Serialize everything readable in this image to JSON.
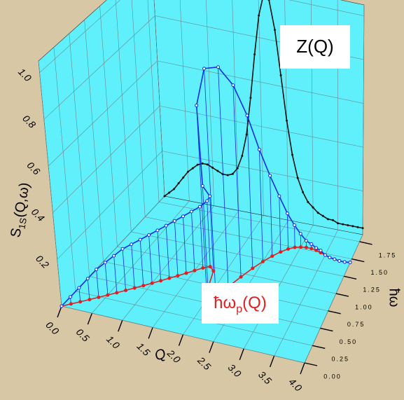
{
  "chart_data": {
    "type": "line3d",
    "x": [
      0.0,
      0.1,
      0.2,
      0.3,
      0.4,
      0.5,
      0.6,
      0.7,
      0.8,
      0.9,
      1.0,
      1.1,
      1.2,
      1.3,
      1.4,
      1.5,
      1.6,
      1.7,
      1.8,
      1.9,
      2.0,
      2.1,
      2.2,
      2.3,
      2.4,
      2.5,
      2.6,
      2.7,
      2.8,
      2.9,
      3.0,
      3.1,
      3.2,
      3.3,
      3.4,
      3.5,
      3.6,
      3.7,
      3.8,
      3.9,
      4.0
    ],
    "omega_p": {
      "color": "#e02020",
      "values": [
        0,
        0.06,
        0.12,
        0.18,
        0.24,
        0.3,
        0.36,
        0.42,
        0.48,
        0.54,
        0.6,
        0.66,
        0.72,
        0.78,
        0.84,
        0.9,
        0.96,
        1.0,
        0.95,
        0.7,
        0.55,
        0.62,
        0.78,
        0.95,
        1.1,
        1.22,
        1.32,
        1.4,
        1.46,
        1.5,
        1.52,
        1.53,
        1.53,
        1.52,
        1.5,
        1.48,
        1.46,
        1.45,
        1.44,
        1.44,
        1.45
      ]
    },
    "S": {
      "color": "#1030e0",
      "values": [
        0,
        0.03,
        0.06,
        0.09,
        0.12,
        0.14,
        0.16,
        0.18,
        0.19,
        0.2,
        0.21,
        0.22,
        0.23,
        0.24,
        0.25,
        0.26,
        0.27,
        0.29,
        0.33,
        0.45,
        0.85,
        1.0,
        0.97,
        0.85,
        0.68,
        0.5,
        0.36,
        0.25,
        0.16,
        0.1,
        0.06,
        0.03,
        0.02,
        0.01,
        0.01,
        0,
        0,
        0,
        0,
        0,
        0
      ]
    },
    "Z": {
      "color": "#111111",
      "values": [
        0,
        0.02,
        0.04,
        0.07,
        0.1,
        0.13,
        0.15,
        0.17,
        0.18,
        0.18,
        0.17,
        0.16,
        0.15,
        0.15,
        0.16,
        0.19,
        0.25,
        0.35,
        0.52,
        0.72,
        0.9,
        1.0,
        0.98,
        0.85,
        0.65,
        0.45,
        0.3,
        0.2,
        0.14,
        0.1,
        0.08,
        0.06,
        0.05,
        0.04,
        0.04,
        0.03,
        0.03,
        0.03,
        0.03,
        0.03,
        0.03
      ]
    },
    "xlim": [
      0,
      4.0
    ],
    "xticks": [
      {
        "value": 0,
        "label": "0.0"
      },
      0.5,
      {
        "value": 1,
        "label": "1.0"
      },
      1.5,
      {
        "value": 2,
        "label": "2.0"
      },
      2.5,
      {
        "value": 3,
        "label": "3.0"
      },
      3.5,
      {
        "value": 4,
        "label": "4.0"
      }
    ],
    "wlim": [
      0,
      1.85
    ],
    "wticks": [
      {
        "value": 0,
        "label": "0.00"
      },
      0.25,
      {
        "value": 0.5,
        "label": "0.50"
      },
      0.75,
      {
        "value": 1,
        "label": "1.00"
      },
      1.25,
      {
        "value": 1.5,
        "label": "1.50"
      },
      1.75
    ],
    "ylim": [
      0,
      1.05
    ],
    "yticks": [
      0.2,
      0.4,
      0.6,
      0.8,
      {
        "value": 1,
        "label": "1.0"
      }
    ],
    "xlabel": "Q",
    "wlabel": "ħω",
    "ylabel": {
      "main": "S",
      "sub": "1S",
      "tail": "(Q,ω)"
    },
    "annotations": {
      "z": "Z(Q)",
      "omega": {
        "main": "ħω",
        "sub": "p",
        "tail": "(Q)"
      }
    },
    "wall_color": "#5ff0fb",
    "grid": true
  }
}
